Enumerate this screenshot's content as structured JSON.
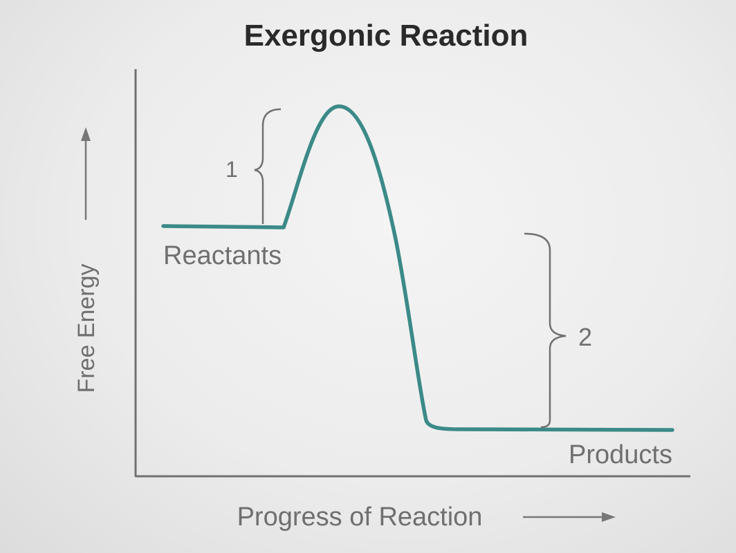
{
  "title": "Exergonic Reaction",
  "y_axis_label": "Free Energy",
  "x_axis_label": "Progress of Reaction",
  "reactants_label": "Reactants",
  "products_label": "Products",
  "bracket_1_label": "1",
  "bracket_2_label": "2",
  "colors": {
    "curve": "#3b8a88",
    "axes": "#707070",
    "text": "#6f6f6f",
    "title": "#2a2a2a"
  }
}
